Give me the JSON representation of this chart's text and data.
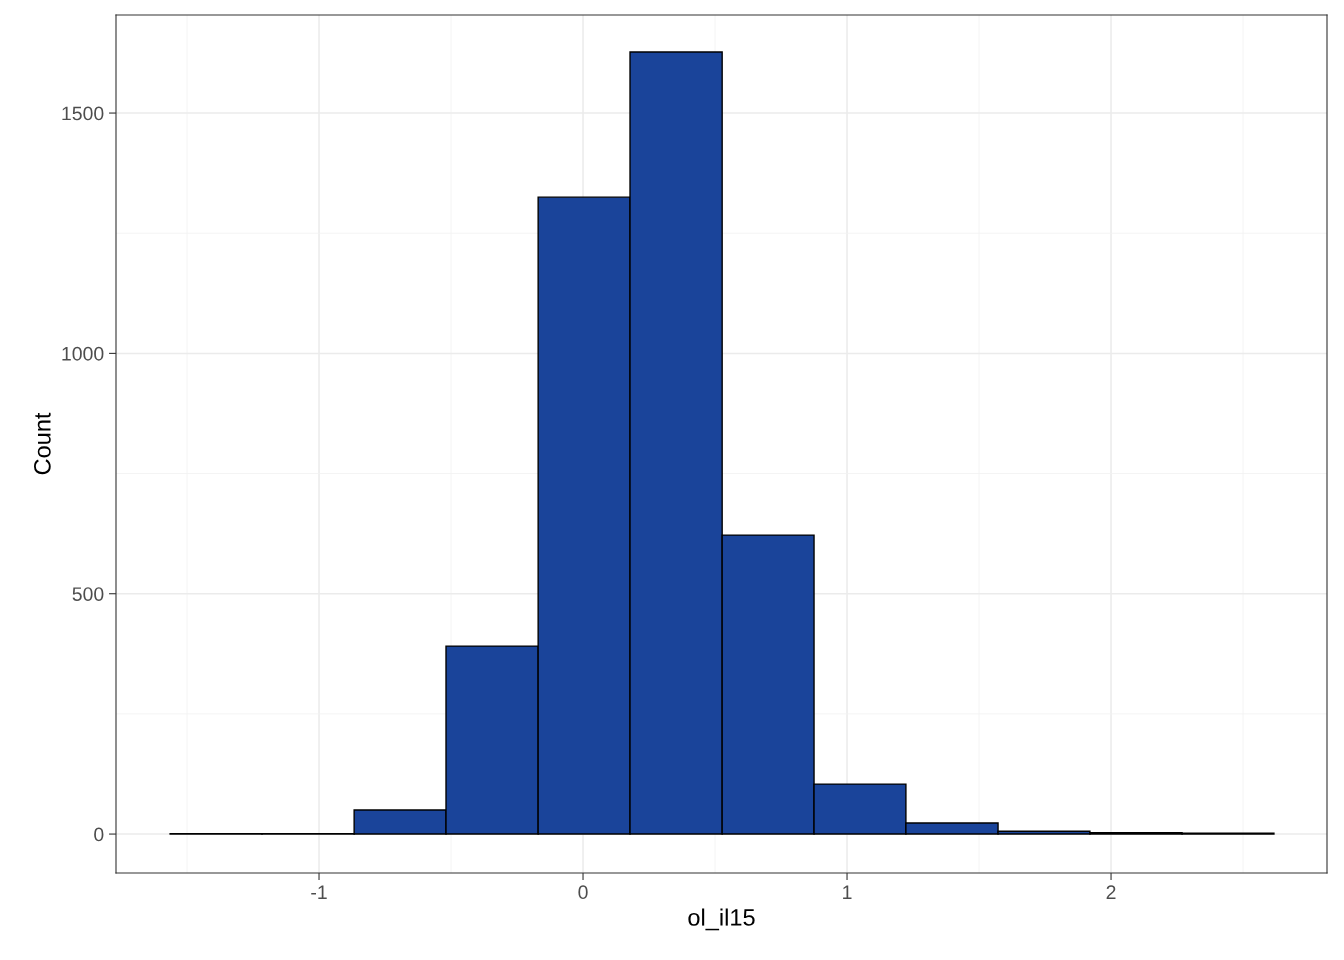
{
  "chart_data": {
    "type": "histogram",
    "xlabel": "ol_il15",
    "ylabel": "Count",
    "bins": [
      -1.564,
      -1.216,
      -0.867,
      -0.519,
      -0.17,
      0.178,
      0.527,
      0.875,
      1.223,
      1.572,
      1.92,
      2.269,
      2.617
    ],
    "values": [
      1,
      1,
      50,
      391,
      1325,
      1627,
      622,
      104,
      23,
      6,
      3,
      2
    ],
    "color": "#1a449a",
    "xlim": [
      -1.769,
      2.818
    ],
    "ylim": [
      -81,
      1704
    ],
    "xticks": [
      -1,
      0,
      1,
      2
    ],
    "yticks": [
      0,
      500,
      1000,
      1500
    ],
    "grid": true
  }
}
